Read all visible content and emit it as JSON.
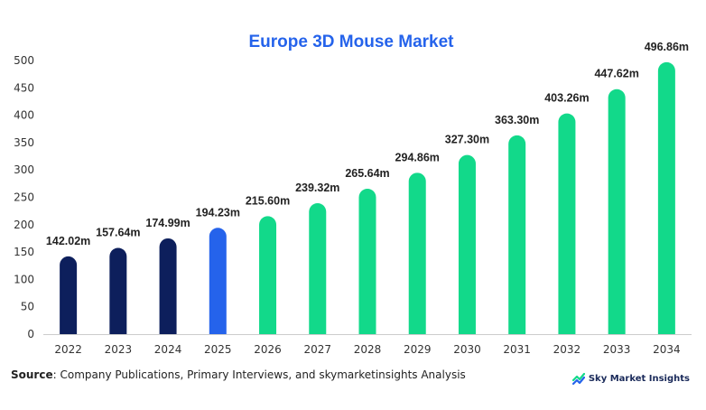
{
  "chart_data": {
    "type": "bar",
    "title": "Europe 3D Mouse Market",
    "categories": [
      "2022",
      "2023",
      "2024",
      "2025",
      "2026",
      "2027",
      "2028",
      "2029",
      "2030",
      "2031",
      "2032",
      "2033",
      "2034"
    ],
    "values": [
      142.02,
      157.64,
      174.99,
      194.23,
      215.6,
      239.32,
      265.64,
      294.86,
      327.3,
      363.3,
      403.26,
      447.62,
      496.86
    ],
    "data_labels": [
      "142.02m",
      "157.64m",
      "174.99m",
      "194.23m",
      "215.60m",
      "239.32m",
      "265.64m",
      "294.86m",
      "327.30m",
      "363.30m",
      "403.26m",
      "447.62m",
      "496.86m"
    ],
    "yticks": [
      "0",
      "50",
      "100",
      "150",
      "200",
      "250",
      "300",
      "350",
      "400",
      "450",
      "500"
    ],
    "ylim": [
      0,
      500
    ],
    "grid": false,
    "xlabel": "",
    "ylabel": "",
    "colors": {
      "historical": "#0d1f5c",
      "current": "#2563eb",
      "forecast": "#12d98a",
      "title": "#2563eb"
    },
    "bar_groups": [
      "historical",
      "historical",
      "historical",
      "current",
      "forecast",
      "forecast",
      "forecast",
      "forecast",
      "forecast",
      "forecast",
      "forecast",
      "forecast",
      "forecast"
    ]
  },
  "footer": {
    "source_label": "Source",
    "source_text": ": Company Publications, Primary Interviews, and skymarketinsights Analysis"
  },
  "logo": {
    "text": "Sky Market Insights",
    "icon": "sky-market-insights-logo-icon"
  }
}
